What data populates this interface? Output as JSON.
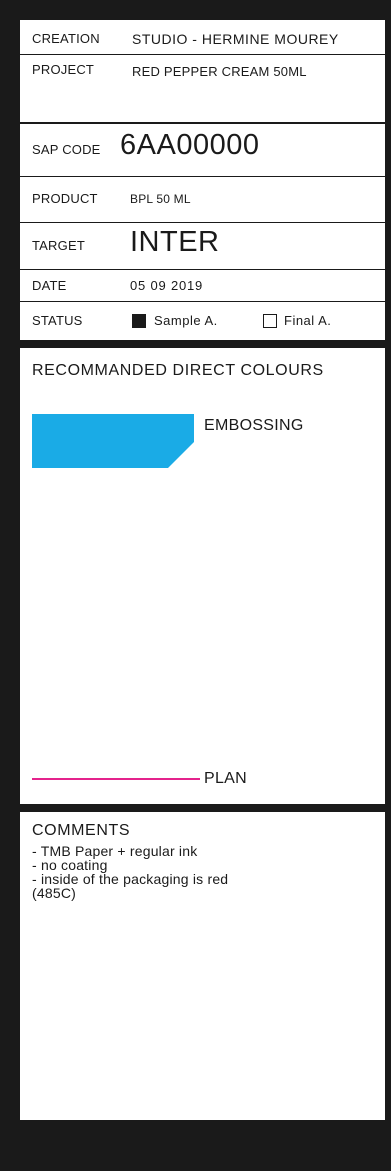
{
  "sheet": {
    "creation": {
      "label": "CREATION",
      "value": "STUDIO - HERMINE MOUREY"
    },
    "project": {
      "label": "PROJECT",
      "value": "RED PEPPER CREAM 50ML"
    },
    "sap_code": {
      "label": "SAP CODE",
      "value": "6AA00000"
    },
    "product": {
      "label": "PRODUCT",
      "value": "BPL 50 ML"
    },
    "target": {
      "label": "TARGET",
      "value": "INTER"
    },
    "date": {
      "label": "DATE",
      "value": "05 09 2019"
    },
    "status": {
      "label": "STATUS",
      "sample": {
        "label": "Sample A.",
        "checked": true
      },
      "final": {
        "label": "Final A.",
        "checked": false
      }
    }
  },
  "colours": {
    "title": "RECOMMANDED DIRECT COLOURS",
    "embossing": {
      "label": "EMBOSSING",
      "color": "#1aabe6"
    },
    "plan": {
      "label": "PLAN",
      "color": "#e4238c"
    }
  },
  "comments": {
    "title": "COMMENTS",
    "lines": [
      "- TMB Paper + regular ink",
      "- no coating",
      "- inside of the packaging is red",
      "(485C)"
    ]
  }
}
